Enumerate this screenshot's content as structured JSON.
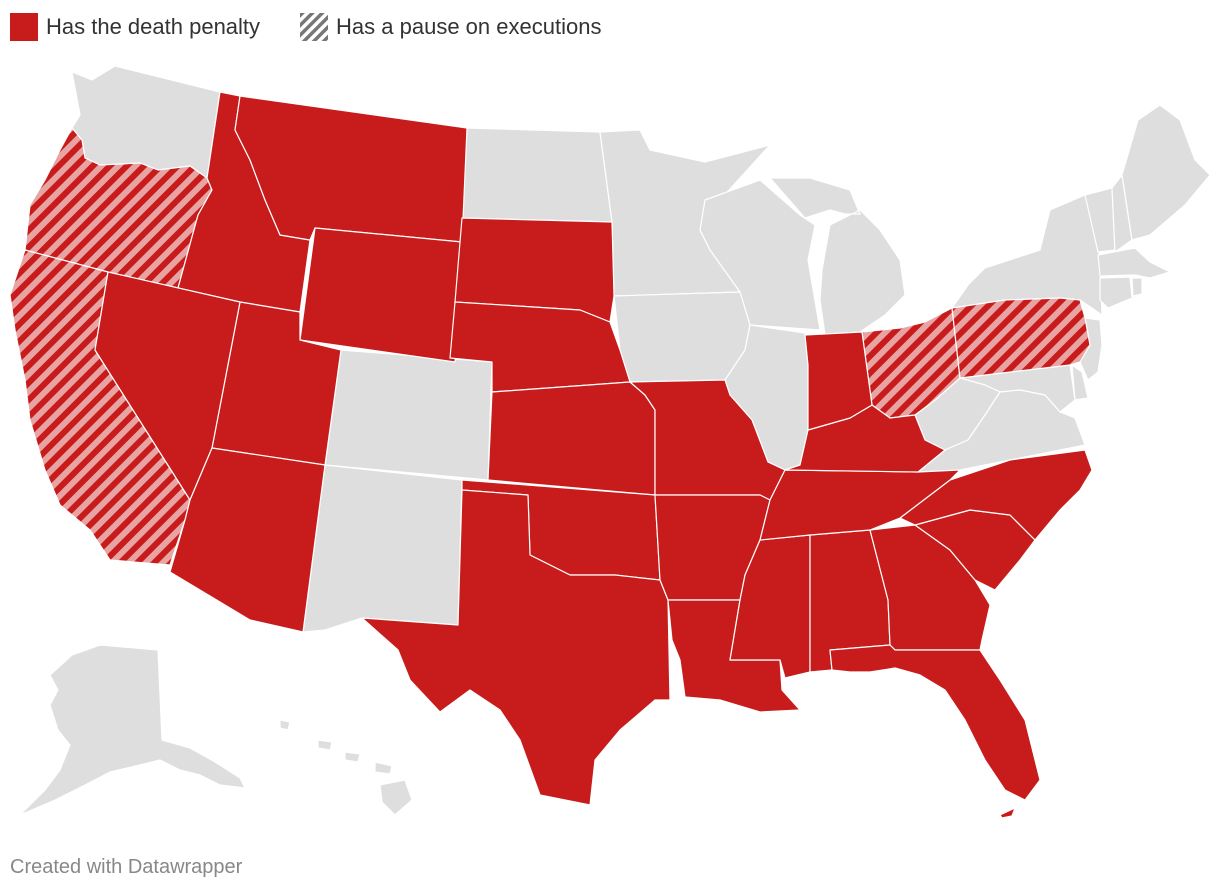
{
  "legend": {
    "items": [
      {
        "label": "Has the death penalty",
        "pattern": "solid",
        "color": "#c81b1b"
      },
      {
        "label": "Has a pause on executions",
        "pattern": "hatched",
        "color": "#c81b1b"
      }
    ]
  },
  "colors": {
    "death_penalty": "#c81b1b",
    "pause_hatch": "#e8a3a3",
    "no_death_penalty": "#dedede"
  },
  "map": {
    "states_death_penalty": [
      "ID",
      "MT",
      "WY",
      "SD",
      "NE",
      "UT",
      "NV",
      "AZ",
      "KS",
      "MO",
      "OK",
      "TX",
      "AR",
      "LA",
      "MS",
      "AL",
      "GA",
      "FL",
      "SC",
      "NC",
      "TN",
      "KY",
      "IN"
    ],
    "states_pause": [
      "OR",
      "CA",
      "PA",
      "OH"
    ],
    "states_none": [
      "WA",
      "ND",
      "MN",
      "WI",
      "IA",
      "IL",
      "MI",
      "CO",
      "NM",
      "NY",
      "VT",
      "NH",
      "ME",
      "MA",
      "CT",
      "RI",
      "NJ",
      "DE",
      "MD",
      "WV",
      "VA",
      "AK",
      "HI"
    ]
  },
  "footer": {
    "credit": "Created with Datawrapper"
  }
}
